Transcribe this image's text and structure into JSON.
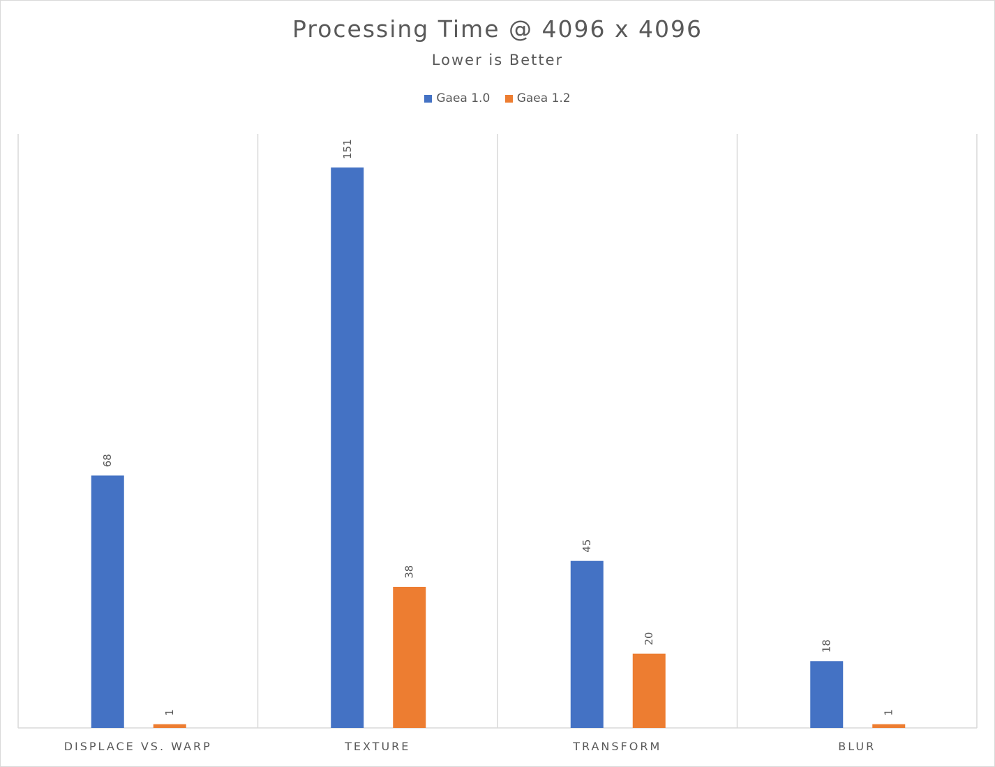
{
  "chart_data": {
    "type": "bar",
    "title": "Processing Time @ 4096 x 4096",
    "subtitle": "Lower is Better",
    "categories": [
      "DISPLACE VS. WARP",
      "TEXTURE",
      "TRANSFORM",
      "BLUR"
    ],
    "series": [
      {
        "name": "Gaea 1.0",
        "color": "#4472C4",
        "values": [
          68,
          151,
          45,
          18
        ]
      },
      {
        "name": "Gaea 1.2",
        "color": "#ED7D31",
        "values": [
          1,
          38,
          20,
          1
        ]
      }
    ],
    "ylim": [
      0,
      160
    ],
    "grid": "vertical category separators",
    "legend_position": "top-center",
    "data_labels": true,
    "data_label_rotation": "vertical"
  }
}
